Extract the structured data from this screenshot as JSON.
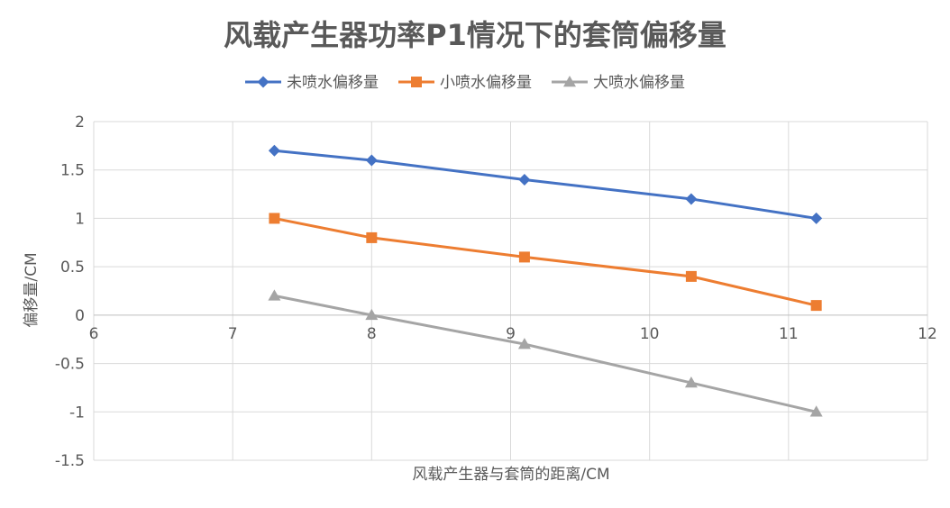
{
  "chart_data": {
    "type": "line",
    "title": "风载产生器功率P1情况下的套筒偏移量",
    "xlabel": "风载产生器与套筒的距离/CM",
    "ylabel": "偏移量/CM",
    "xlim": [
      6,
      12
    ],
    "ylim": [
      -1.5,
      2
    ],
    "x_ticks": [
      "6",
      "7",
      "8",
      "9",
      "10",
      "11",
      "12"
    ],
    "y_ticks": [
      "2",
      "1.5",
      "1",
      "0.5",
      "0",
      "-0.5",
      "-1",
      "-1.5"
    ],
    "grid": true,
    "legend_position": "top",
    "series": [
      {
        "name": "未喷水偏移量",
        "color": "#4472c4",
        "marker": "diamond",
        "x": [
          7.3,
          8,
          9.1,
          10.3,
          11.2
        ],
        "y": [
          1.7,
          1.6,
          1.4,
          1.2,
          1.0
        ]
      },
      {
        "name": "小喷水偏移量",
        "color": "#ed7d31",
        "marker": "square",
        "x": [
          7.3,
          8,
          9.1,
          10.3,
          11.2
        ],
        "y": [
          1.0,
          0.8,
          0.6,
          0.4,
          0.1
        ]
      },
      {
        "name": "大喷水偏移量",
        "color": "#a5a5a5",
        "marker": "triangle",
        "x": [
          7.3,
          8,
          9.1,
          10.3,
          11.2
        ],
        "y": [
          0.2,
          0.0,
          -0.3,
          -0.7,
          -1.0
        ]
      }
    ]
  }
}
